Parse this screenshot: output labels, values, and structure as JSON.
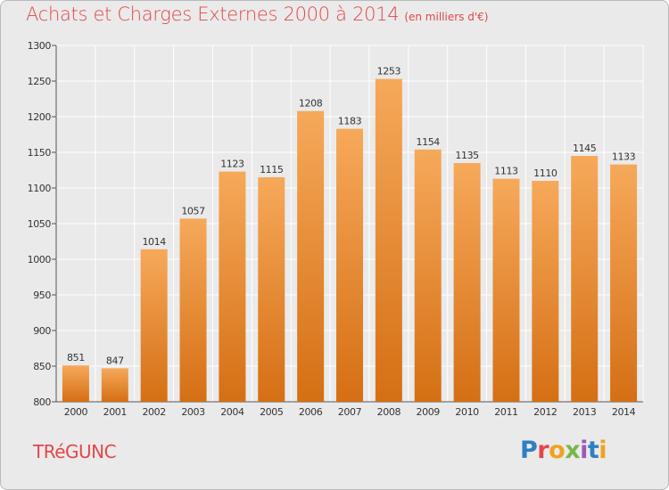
{
  "header": {
    "title": "Achats et Charges Externes 2000 à 2014",
    "unit": "(en milliers d'€)"
  },
  "footer": {
    "commune": "TRéGUNC",
    "brand": "Proxiti"
  },
  "colors": {
    "bar_light": "#f6a95a",
    "bar_dark": "#d56f14",
    "title": "#e2474a",
    "background": "#eaeaea",
    "grid": "#ffffff",
    "brand_letters": [
      "#2f7fc2",
      "#e2474a",
      "#f0a21e",
      "#7ab648",
      "#9b59b6",
      "#2f7fc2",
      "#f0a21e"
    ]
  },
  "chart_data": {
    "type": "bar",
    "title": "Achats et Charges Externes 2000 à 2014",
    "subtitle": "(en milliers d'€)",
    "xlabel": "",
    "ylabel": "",
    "categories": [
      "2000",
      "2001",
      "2002",
      "2003",
      "2004",
      "2005",
      "2006",
      "2007",
      "2008",
      "2009",
      "2010",
      "2011",
      "2012",
      "2013",
      "2014"
    ],
    "values": [
      851,
      847,
      1014,
      1057,
      1123,
      1115,
      1208,
      1183,
      1253,
      1154,
      1135,
      1113,
      1110,
      1145,
      1133
    ],
    "ylim": [
      800,
      1300
    ],
    "yticks": [
      800,
      850,
      900,
      950,
      1000,
      1050,
      1100,
      1150,
      1200,
      1250,
      1300
    ],
    "grid": true,
    "data_labels": true
  }
}
